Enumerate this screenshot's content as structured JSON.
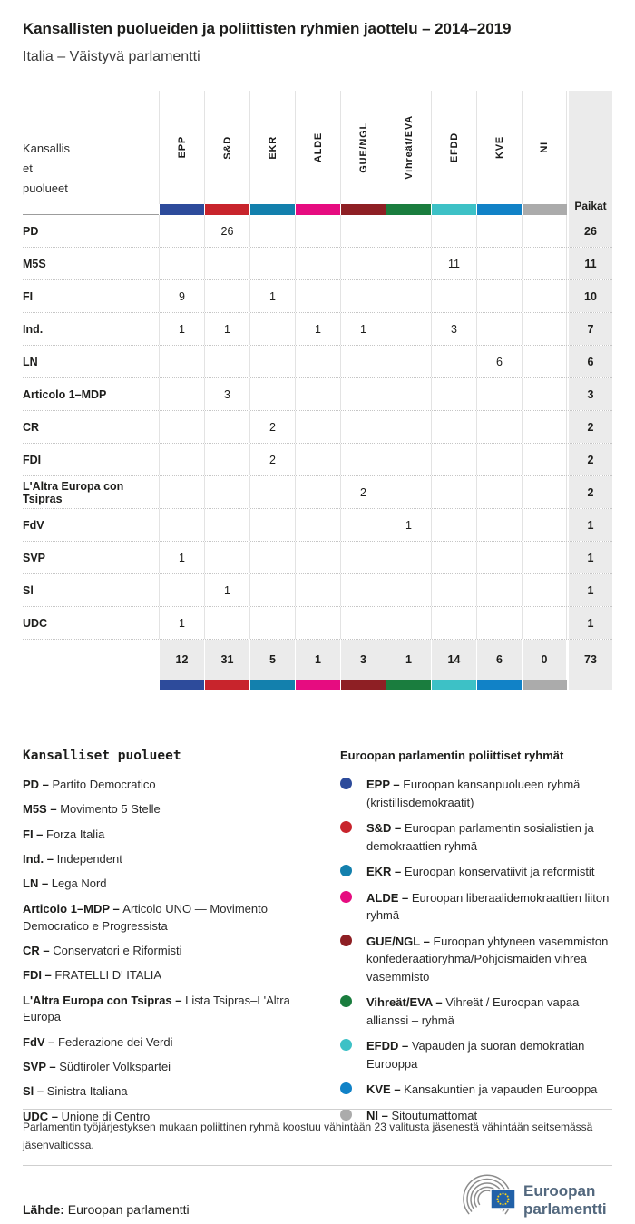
{
  "title": "Kansallisten puolueiden ja poliittisten ryhmien jaottelu – 2014–2019",
  "subtitle": "Italia – Väistyvä parlamentti",
  "table": {
    "corner_label": "Kansallis\net\npuolueet",
    "seats_label": "Paikat"
  },
  "chart_data": {
    "type": "table",
    "title": "Kansallisten puolueiden ja poliittisten ryhmien jaottelu – 2014–2019",
    "subtitle": "Italia – Väistyvä parlamentti",
    "groups": [
      {
        "id": "EPP",
        "color": "#2d4b9b"
      },
      {
        "id": "S&D",
        "color": "#c8242c"
      },
      {
        "id": "EKR",
        "color": "#1380ad"
      },
      {
        "id": "ALDE",
        "color": "#e60c80"
      },
      {
        "id": "GUE/NGL",
        "color": "#8e1f24"
      },
      {
        "id": "Vihreät/EVA",
        "color": "#1a7d3e"
      },
      {
        "id": "EFDD",
        "color": "#3dc1c6"
      },
      {
        "id": "KVE",
        "color": "#1182c7"
      },
      {
        "id": "NI",
        "color": "#ababab"
      }
    ],
    "rows": [
      {
        "party": "PD",
        "values": [
          null,
          26,
          null,
          null,
          null,
          null,
          null,
          null,
          null
        ],
        "total": 26
      },
      {
        "party": "M5S",
        "values": [
          null,
          null,
          null,
          null,
          null,
          null,
          11,
          null,
          null
        ],
        "total": 11
      },
      {
        "party": "FI",
        "values": [
          9,
          null,
          1,
          null,
          null,
          null,
          null,
          null,
          null
        ],
        "total": 10
      },
      {
        "party": "Ind.",
        "values": [
          1,
          1,
          null,
          1,
          1,
          null,
          3,
          null,
          null
        ],
        "total": 7
      },
      {
        "party": "LN",
        "values": [
          null,
          null,
          null,
          null,
          null,
          null,
          null,
          6,
          null
        ],
        "total": 6
      },
      {
        "party": "Articolo 1–MDP",
        "values": [
          null,
          3,
          null,
          null,
          null,
          null,
          null,
          null,
          null
        ],
        "total": 3
      },
      {
        "party": "CR",
        "values": [
          null,
          null,
          2,
          null,
          null,
          null,
          null,
          null,
          null
        ],
        "total": 2
      },
      {
        "party": "FDI",
        "values": [
          null,
          null,
          2,
          null,
          null,
          null,
          null,
          null,
          null
        ],
        "total": 2
      },
      {
        "party": "L'Altra Europa con Tsipras",
        "values": [
          null,
          null,
          null,
          null,
          2,
          null,
          null,
          null,
          null
        ],
        "total": 2
      },
      {
        "party": "FdV",
        "values": [
          null,
          null,
          null,
          null,
          null,
          1,
          null,
          null,
          null
        ],
        "total": 1
      },
      {
        "party": "SVP",
        "values": [
          1,
          null,
          null,
          null,
          null,
          null,
          null,
          null,
          null
        ],
        "total": 1
      },
      {
        "party": "Sl",
        "values": [
          null,
          1,
          null,
          null,
          null,
          null,
          null,
          null,
          null
        ],
        "total": 1
      },
      {
        "party": "UDC",
        "values": [
          1,
          null,
          null,
          null,
          null,
          null,
          null,
          null,
          null
        ],
        "total": 1
      }
    ],
    "column_totals": [
      12,
      31,
      5,
      1,
      3,
      1,
      14,
      6,
      0
    ],
    "grand_total": 73
  },
  "legend_parties": {
    "title": "Kansalliset puolueet",
    "items": [
      {
        "abbr": "PD – ",
        "name": "Partito Democratico"
      },
      {
        "abbr": "M5S – ",
        "name": "Movimento 5 Stelle"
      },
      {
        "abbr": "FI – ",
        "name": "Forza Italia"
      },
      {
        "abbr": "Ind. – ",
        "name": "Independent"
      },
      {
        "abbr": "LN – ",
        "name": "Lega Nord"
      },
      {
        "abbr": "Articolo 1–MDP – ",
        "name": "Articolo UNO — Movimento Democratico e Progressista"
      },
      {
        "abbr": "CR – ",
        "name": "Conservatori e Riformisti"
      },
      {
        "abbr": "FDI – ",
        "name": "FRATELLI D' ITALIA"
      },
      {
        "abbr": "L'Altra Europa con Tsipras – ",
        "name": "Lista Tsipras–L'Altra Europa"
      },
      {
        "abbr": "FdV – ",
        "name": "Federazione dei Verdi"
      },
      {
        "abbr": "SVP – ",
        "name": "Südtiroler Volkspartei"
      },
      {
        "abbr": "Sl – ",
        "name": "Sinistra Italiana"
      },
      {
        "abbr": "UDC – ",
        "name": "Unione di Centro"
      }
    ]
  },
  "legend_groups": {
    "title": "Euroopan parlamentin poliittiset ryhmät",
    "items": [
      {
        "abbr": "EPP – ",
        "color": "#2d4b9b",
        "name": "Euroopan kansanpuolueen ryhmä (kristillisdemokraatit)"
      },
      {
        "abbr": "S&D – ",
        "color": "#c8242c",
        "name": "Euroopan parlamentin sosialistien ja demokraattien ryhmä"
      },
      {
        "abbr": "EKR – ",
        "color": "#1380ad",
        "name": "Euroopan konservatiivit ja reformistit"
      },
      {
        "abbr": "ALDE – ",
        "color": "#e60c80",
        "name": "Euroopan liberaalidemokraattien liiton ryhmä"
      },
      {
        "abbr": "GUE/NGL – ",
        "color": "#8e1f24",
        "name": "Euroopan yhtyneen vasemmiston konfederaatioryhmä/Pohjoismaiden vihreä vasemmisto"
      },
      {
        "abbr": "Vihreät/EVA – ",
        "color": "#1a7d3e",
        "name": "Vihreät / Euroopan vapaa allianssi – ryhmä"
      },
      {
        "abbr": "EFDD – ",
        "color": "#3dc1c6",
        "name": "Vapauden ja suoran demokratian Eurooppa"
      },
      {
        "abbr": "KVE – ",
        "color": "#1182c7",
        "name": "Kansakuntien ja vapauden Eurooppa"
      },
      {
        "abbr": "NI – ",
        "color": "#ababab",
        "name": "Sitoutumattomat"
      }
    ]
  },
  "footer": {
    "note": "Parlamentin työjärjestyksen mukaan poliittinen ryhmä koostuu vähintään 23 valitusta jäsenestä vähintään seitsemässä jäsenvaltiossa.",
    "source_label": "Lähde:",
    "source_text": " Euroopan parlamentti",
    "logo_line1": "Euroopan",
    "logo_line2": "parlamentti"
  }
}
